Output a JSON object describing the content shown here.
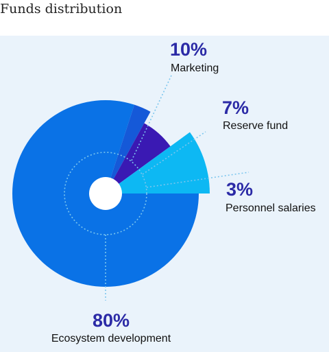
{
  "page": {
    "heading": "Funds distribution"
  },
  "colors": {
    "panel_bg": "#eaf3fb",
    "percent_text": "#2b2aa6",
    "leader_lines": "#7cc6ee"
  },
  "chart_data": {
    "type": "pie",
    "title": "",
    "slices": [
      {
        "name": "Ecosystem development",
        "value": 80,
        "label": "80%",
        "color": "#0a72e6"
      },
      {
        "name": "Personnel salaries",
        "value": 3,
        "label": "3%",
        "color": "#1559d8"
      },
      {
        "name": "Reserve fund",
        "value": 7,
        "label": "7%",
        "color": "#3a19b3"
      },
      {
        "name": "Marketing",
        "value": 10,
        "label": "10%",
        "color": "#0db8f3"
      }
    ],
    "legend": "none"
  }
}
